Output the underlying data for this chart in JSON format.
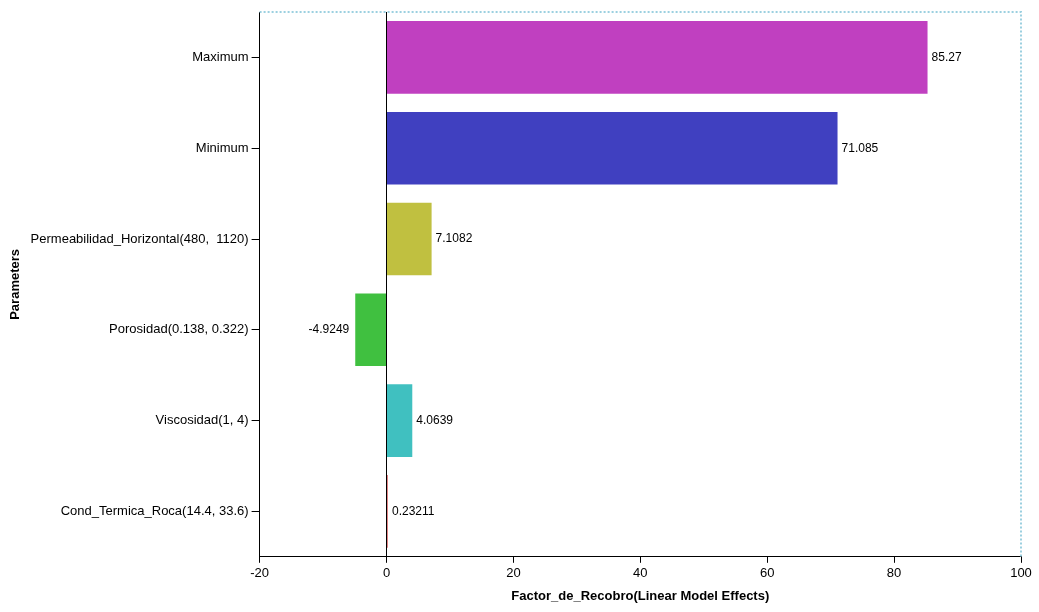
{
  "chart_data": {
    "type": "bar",
    "orientation": "horizontal",
    "xlabel": "Factor_de_Recobro(Linear Model Effects)",
    "ylabel": "Parameters",
    "categories": [
      "Maximum",
      "Minimum",
      "Permeabilidad_Horizontal(480,  1120)",
      "Porosidad(0.138, 0.322)",
      "Viscosidad(1, 4)",
      "Cond_Termica_Roca(14.4, 33.6)"
    ],
    "values": [
      85.27,
      71.085,
      7.1082,
      -4.9249,
      4.0639,
      0.23211
    ],
    "colors": [
      "#c040c0",
      "#4040c0",
      "#c0c040",
      "#40c040",
      "#40c0c0",
      "#e08080"
    ],
    "xlim": [
      -20,
      100
    ],
    "xticks": [
      -20,
      0,
      20,
      40,
      60,
      80,
      100
    ],
    "ref_lines": [
      {
        "axis": "x",
        "value": 0,
        "color": "#000000"
      }
    ],
    "data_labels": true,
    "grid": false,
    "legend": false
  }
}
